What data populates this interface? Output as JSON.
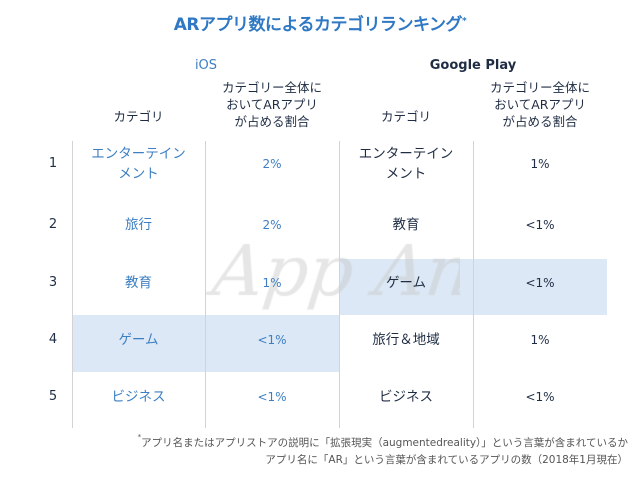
{
  "title": "ARアプリ数によるカテゴリランキング",
  "title_mark": "*",
  "watermark": "App Annie",
  "ios": {
    "label": "iOS",
    "col_category": "カテゴリ",
    "col_share": [
      "カテゴリー全体に",
      "おいてARアプリ",
      "が占める割合"
    ],
    "rows": [
      {
        "rank": "1",
        "category": [
          "エンターテイン",
          "メント"
        ],
        "share": "2%"
      },
      {
        "rank": "2",
        "category": [
          "旅行"
        ],
        "share": "2%"
      },
      {
        "rank": "3",
        "category": [
          "教育"
        ],
        "share": "1%"
      },
      {
        "rank": "4",
        "category": [
          "ゲーム"
        ],
        "share": "<1%",
        "highlighted": true
      },
      {
        "rank": "5",
        "category": [
          "ビジネス"
        ],
        "share": "<1%"
      }
    ]
  },
  "google_play": {
    "label": "Google Play",
    "col_category": "カテゴリ",
    "col_share": [
      "カテゴリー全体に",
      "おいてARアプリ",
      "が占める割合"
    ],
    "rows": [
      {
        "category": [
          "エンターテイン",
          "メント"
        ],
        "share": "1%"
      },
      {
        "category": [
          "教育"
        ],
        "share": "<1%"
      },
      {
        "category": [
          "ゲーム"
        ],
        "share": "<1%",
        "highlighted": true
      },
      {
        "category": [
          "旅行＆地域"
        ],
        "share": "1%"
      },
      {
        "category": [
          "ビジネス"
        ],
        "share": "<1%"
      }
    ]
  },
  "footnote": {
    "mark": "*",
    "line1": "アプリ名またはアプリストアの説明に「拡張現実（augmentedreality）」という言葉が含まれているか",
    "line2": "アプリ名に「AR」という言葉が含まれているアプリの数（2018年1月現在）"
  },
  "colors": {
    "ios_accent": "#3d7fc3",
    "highlight": "#dce8f5",
    "dark_text": "#1f2d44"
  }
}
